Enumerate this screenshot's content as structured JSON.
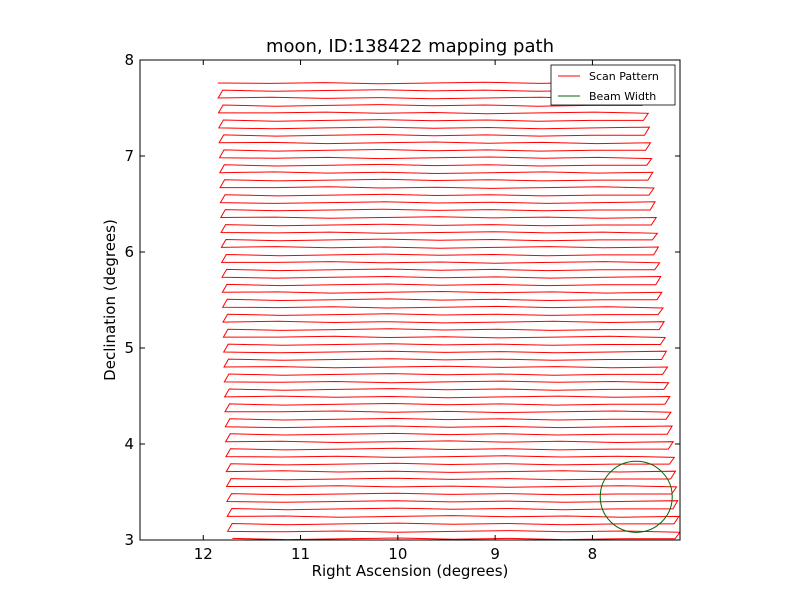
{
  "chart_data": {
    "type": "line",
    "title": "moon, ID:138422 mapping path",
    "xlabel": "Right Ascension (degrees)",
    "ylabel": "Declination (degrees)",
    "xlim": [
      12.65,
      7.1
    ],
    "ylim": [
      3,
      8
    ],
    "x_ticks": [
      "12",
      "11",
      "10",
      "9",
      "8"
    ],
    "x_tick_values": [
      12,
      11,
      10,
      9,
      8
    ],
    "y_ticks": [
      "3",
      "4",
      "5",
      "6",
      "7",
      "8"
    ],
    "y_tick_values": [
      3,
      4,
      5,
      6,
      7,
      8
    ],
    "grid": false,
    "legend": {
      "position": "top-right",
      "entries": [
        {
          "label": "Scan Pattern",
          "color": "#ff0000"
        },
        {
          "label": "Beam Width",
          "color": "#006400"
        }
      ]
    },
    "series": [
      {
        "name": "Scan Pattern",
        "color": "#ff0000",
        "scan": {
          "dec_start": 7.76,
          "dec_end": 3.09,
          "n_passes": 31,
          "ra_left_start": 11.85,
          "ra_left_end": 11.75,
          "ra_right_start": 7.45,
          "ra_right_end": 7.1,
          "row_offset": 0.0775
        }
      },
      {
        "name": "Beam Width",
        "color": "#006400",
        "circle": {
          "ra_center": 7.55,
          "dec_center": 3.45,
          "radius_deg": 0.37
        }
      }
    ]
  }
}
